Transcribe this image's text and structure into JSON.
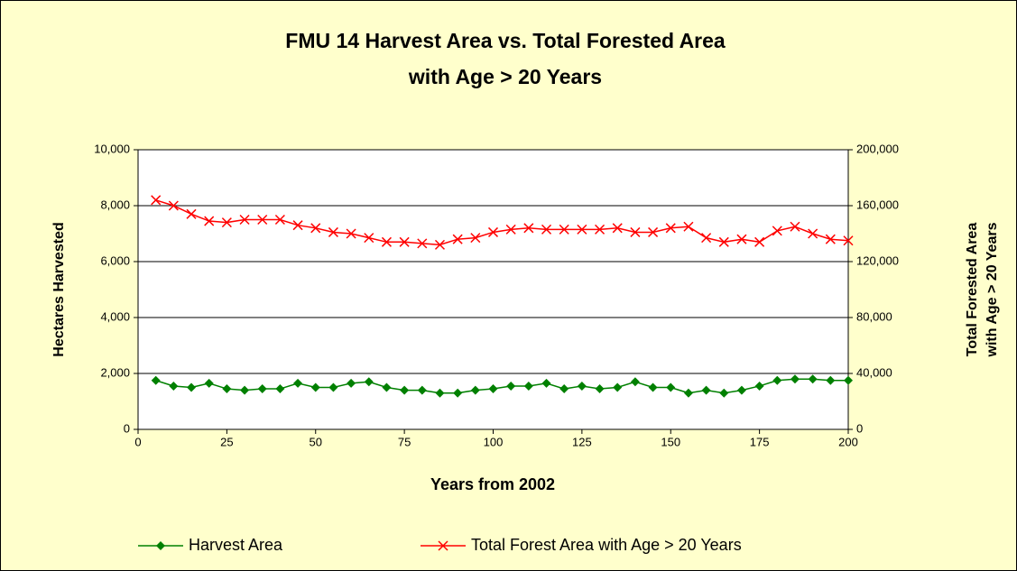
{
  "chart_data": {
    "type": "line",
    "title": [
      "FMU 14 Harvest Area vs. Total Forested Area",
      "with Age > 20 Years"
    ],
    "xlabel": "Years from 2002",
    "ylabel": "Hectares Harvested",
    "y2label": [
      "Total Forested Area",
      "with Age > 20 Years"
    ],
    "x": [
      5,
      10,
      15,
      20,
      25,
      30,
      35,
      40,
      45,
      50,
      55,
      60,
      65,
      70,
      75,
      80,
      85,
      90,
      95,
      100,
      105,
      110,
      115,
      120,
      125,
      130,
      135,
      140,
      145,
      150,
      155,
      160,
      165,
      170,
      175,
      180,
      185,
      190,
      195,
      200
    ],
    "series": [
      {
        "name": "Harvest Area",
        "color": "#008000",
        "marker": "diamond",
        "values": [
          1750,
          1550,
          1500,
          1650,
          1450,
          1400,
          1450,
          1450,
          1650,
          1500,
          1500,
          1650,
          1700,
          1500,
          1400,
          1400,
          1300,
          1300,
          1400,
          1450,
          1550,
          1550,
          1650,
          1450,
          1550,
          1450,
          1500,
          1700,
          1500,
          1500,
          1300,
          1400,
          1300,
          1400,
          1550,
          1750,
          1800,
          1800,
          1750,
          1750
        ]
      },
      {
        "name": "Total Forest Area with Age  > 20 Years",
        "color": "#ff0000",
        "marker": "x",
        "axis": "y2",
        "values": [
          164000,
          160000,
          154000,
          149000,
          148000,
          150000,
          150000,
          150000,
          146000,
          144000,
          141000,
          140000,
          137000,
          134000,
          134000,
          133000,
          132000,
          136000,
          137000,
          141000,
          143000,
          144000,
          143000,
          143000,
          143000,
          143000,
          144000,
          141000,
          141000,
          144000,
          145000,
          137000,
          134000,
          136000,
          134000,
          142000,
          145000,
          140000,
          136000,
          135000
        ]
      }
    ],
    "xlim": [
      0,
      200
    ],
    "xticks": [
      0,
      25,
      50,
      75,
      100,
      125,
      150,
      175,
      200
    ],
    "ylim": [
      0,
      10000
    ],
    "yticks": [
      0,
      {
        "value": 2000,
        "label": "2,000"
      },
      {
        "value": 4000,
        "label": "4,000"
      },
      {
        "value": 6000,
        "label": "6,000"
      },
      {
        "value": 8000,
        "label": "8,000"
      },
      {
        "value": 10000,
        "label": "10,000"
      }
    ],
    "y2lim": [
      0,
      200000
    ],
    "y2ticks": [
      0,
      {
        "value": 40000,
        "label": "40,000"
      },
      {
        "value": 80000,
        "label": "80,000"
      },
      {
        "value": 120000,
        "label": "120,000"
      },
      {
        "value": 160000,
        "label": "160,000"
      },
      {
        "value": 200000,
        "label": "200,000"
      }
    ],
    "grid": true,
    "legend": "bottom"
  }
}
